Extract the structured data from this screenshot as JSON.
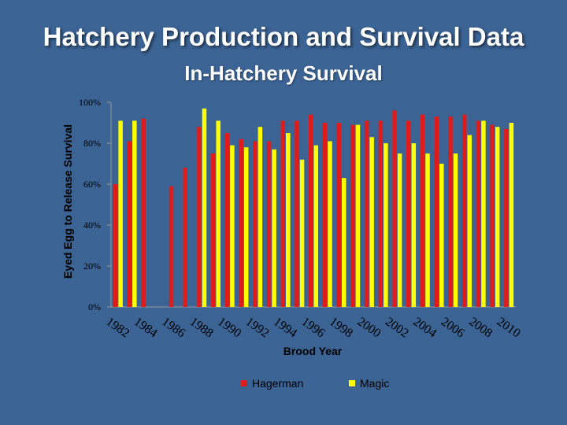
{
  "header": {
    "title": "Hatchery Production and Survival Data"
  },
  "colors": {
    "background": "#3b6394",
    "hagerman": "#e01b1b",
    "magic": "#ffff00",
    "axis": "#999999"
  },
  "chart_data": {
    "type": "bar",
    "title": "In-Hatchery Survival",
    "xlabel": "Brood Year",
    "ylabel": "Eyed Egg to Release Survival",
    "ylim": [
      0,
      100
    ],
    "yticks": [
      "0%",
      "20%",
      "40%",
      "60%",
      "80%",
      "100%"
    ],
    "ytick_values": [
      0,
      20,
      40,
      60,
      80,
      100
    ],
    "categories": [
      "1982",
      "1983",
      "1984",
      "1985",
      "1986",
      "1987",
      "1988",
      "1989",
      "1990",
      "1991",
      "1992",
      "1993",
      "1994",
      "1995",
      "1996",
      "1997",
      "1998",
      "1999",
      "2000",
      "2001",
      "2002",
      "2003",
      "2004",
      "2005",
      "2006",
      "2007",
      "2008",
      "2009",
      "2010"
    ],
    "xtick_labels": [
      "1982",
      "1984",
      "1986",
      "1988",
      "1990",
      "1992",
      "1994",
      "1996",
      "1998",
      "2000",
      "2002",
      "2004",
      "2006",
      "2008",
      "2010"
    ],
    "legend_position": "bottom",
    "series": [
      {
        "name": "Hagerman",
        "color": "#e01b1b",
        "values": [
          60,
          81,
          92,
          null,
          59,
          68,
          88,
          75,
          85,
          82,
          81,
          81,
          91,
          91,
          94,
          90,
          90,
          89,
          91,
          91,
          96,
          91,
          94,
          93,
          93,
          94,
          91,
          89,
          87
        ]
      },
      {
        "name": "Magic",
        "color": "#ffff00",
        "values": [
          91,
          91,
          null,
          null,
          null,
          null,
          97,
          91,
          79,
          78,
          88,
          77,
          85,
          72,
          79,
          81,
          63,
          89,
          83,
          80,
          75,
          80,
          75,
          70,
          75,
          84,
          91,
          88,
          90
        ]
      }
    ]
  }
}
